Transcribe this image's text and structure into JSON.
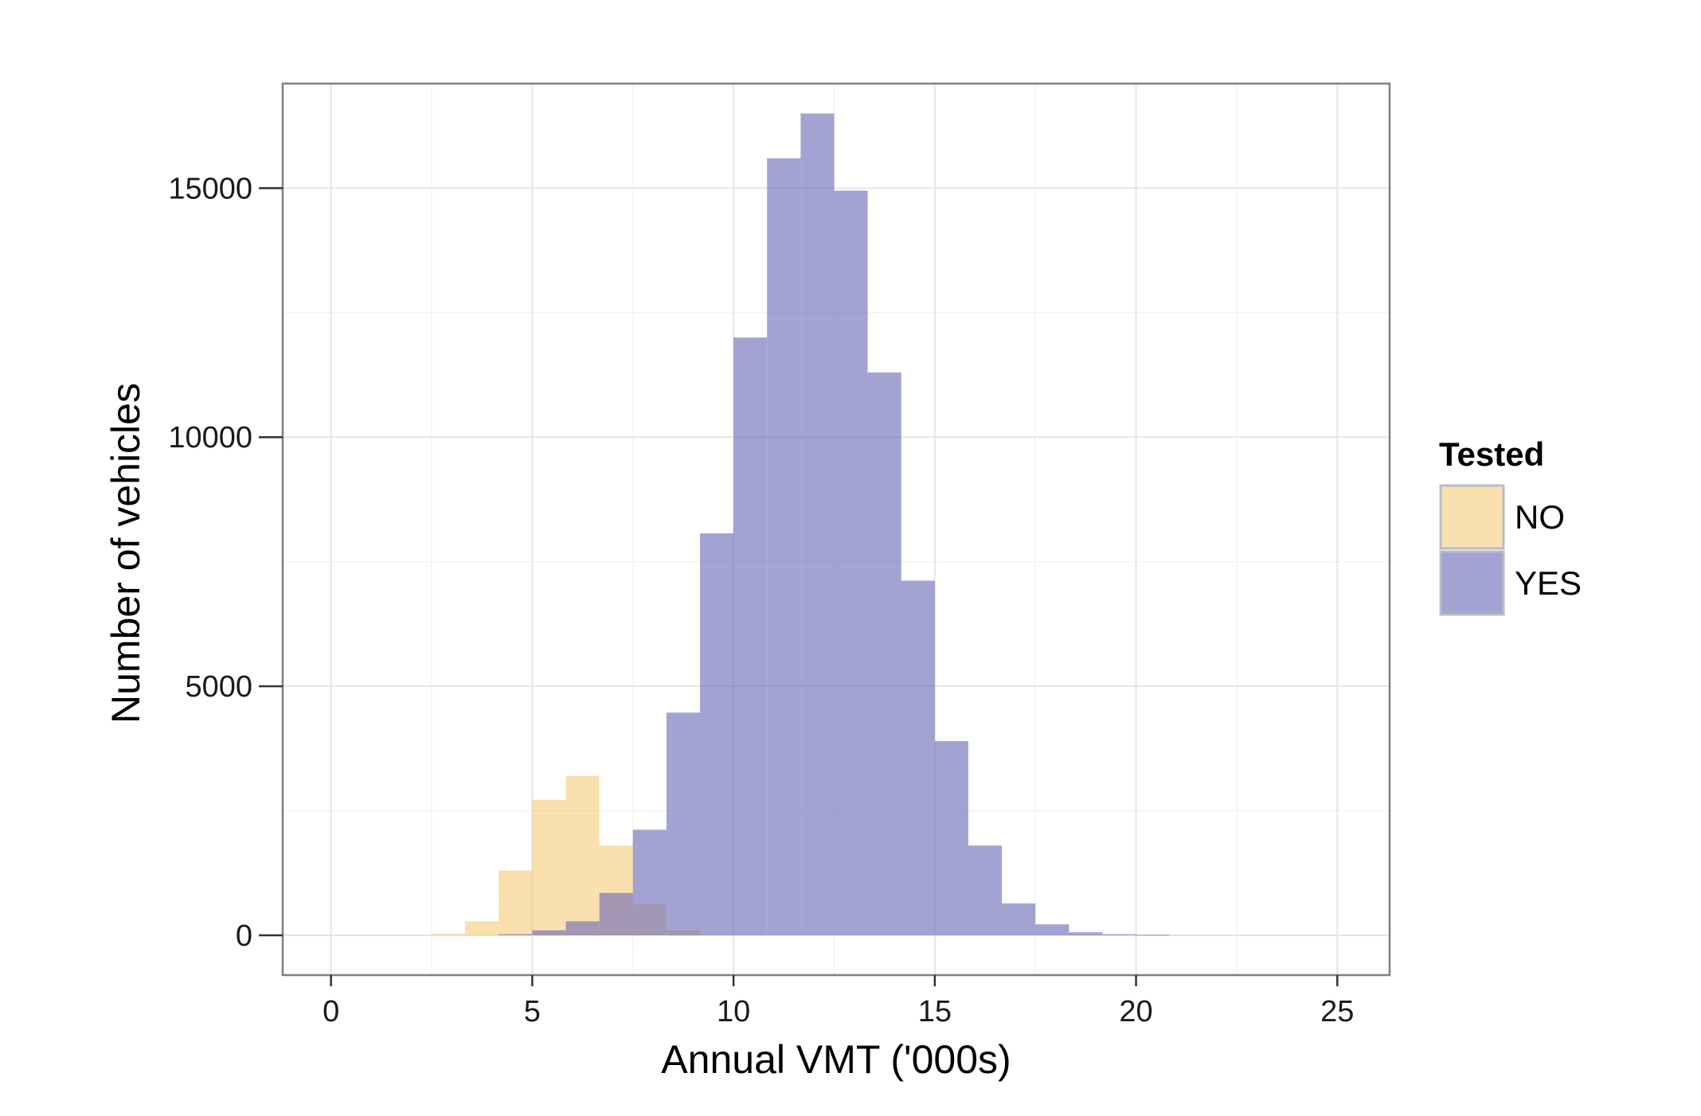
{
  "chart_data": {
    "type": "bar",
    "subtype": "overlapping-histogram",
    "xlabel": "Annual VMT ('000s)",
    "ylabel": "Number of vehicles",
    "xlim": [
      -1.2,
      26.3
    ],
    "ylim": [
      -800,
      17100
    ],
    "xticks": [
      0,
      5,
      10,
      15,
      20,
      25
    ],
    "yticks": [
      0,
      5000,
      10000,
      15000
    ],
    "grid": true,
    "bin_width": 0.833,
    "bin_edges_start": 2.5,
    "legend": {
      "title": "Tested",
      "position": "right"
    },
    "series": [
      {
        "name": "NO",
        "color": "#f5c76b",
        "opacity": 0.55,
        "bins": [
          {
            "x0": 2.5,
            "x1": 3.333,
            "count": 30
          },
          {
            "x0": 3.333,
            "x1": 4.167,
            "count": 280
          },
          {
            "x0": 4.167,
            "x1": 5.0,
            "count": 1300
          },
          {
            "x0": 5.0,
            "x1": 5.833,
            "count": 2720
          },
          {
            "x0": 5.833,
            "x1": 6.667,
            "count": 3200
          },
          {
            "x0": 6.667,
            "x1": 7.5,
            "count": 1800
          },
          {
            "x0": 7.5,
            "x1": 8.333,
            "count": 620
          },
          {
            "x0": 8.333,
            "x1": 9.167,
            "count": 100
          },
          {
            "x0": 9.167,
            "x1": 10.0,
            "count": 10
          }
        ]
      },
      {
        "name": "YES",
        "color": "#6b6bb8",
        "opacity": 0.62,
        "bins": [
          {
            "x0": 4.167,
            "x1": 5.0,
            "count": 20
          },
          {
            "x0": 5.0,
            "x1": 5.833,
            "count": 100
          },
          {
            "x0": 5.833,
            "x1": 6.667,
            "count": 280
          },
          {
            "x0": 6.667,
            "x1": 7.5,
            "count": 850
          },
          {
            "x0": 7.5,
            "x1": 8.333,
            "count": 2120
          },
          {
            "x0": 8.333,
            "x1": 9.167,
            "count": 4470
          },
          {
            "x0": 9.167,
            "x1": 10.0,
            "count": 8070
          },
          {
            "x0": 10.0,
            "x1": 10.833,
            "count": 12000
          },
          {
            "x0": 10.833,
            "x1": 11.667,
            "count": 15600
          },
          {
            "x0": 11.667,
            "x1": 12.5,
            "count": 16500
          },
          {
            "x0": 12.5,
            "x1": 13.333,
            "count": 14950
          },
          {
            "x0": 13.333,
            "x1": 14.167,
            "count": 11300
          },
          {
            "x0": 14.167,
            "x1": 15.0,
            "count": 7120
          },
          {
            "x0": 15.0,
            "x1": 15.833,
            "count": 3900
          },
          {
            "x0": 15.833,
            "x1": 16.667,
            "count": 1800
          },
          {
            "x0": 16.667,
            "x1": 17.5,
            "count": 640
          },
          {
            "x0": 17.5,
            "x1": 18.333,
            "count": 220
          },
          {
            "x0": 18.333,
            "x1": 19.167,
            "count": 60
          },
          {
            "x0": 19.167,
            "x1": 20.0,
            "count": 20
          },
          {
            "x0": 20.0,
            "x1": 20.833,
            "count": 10
          }
        ]
      }
    ]
  }
}
